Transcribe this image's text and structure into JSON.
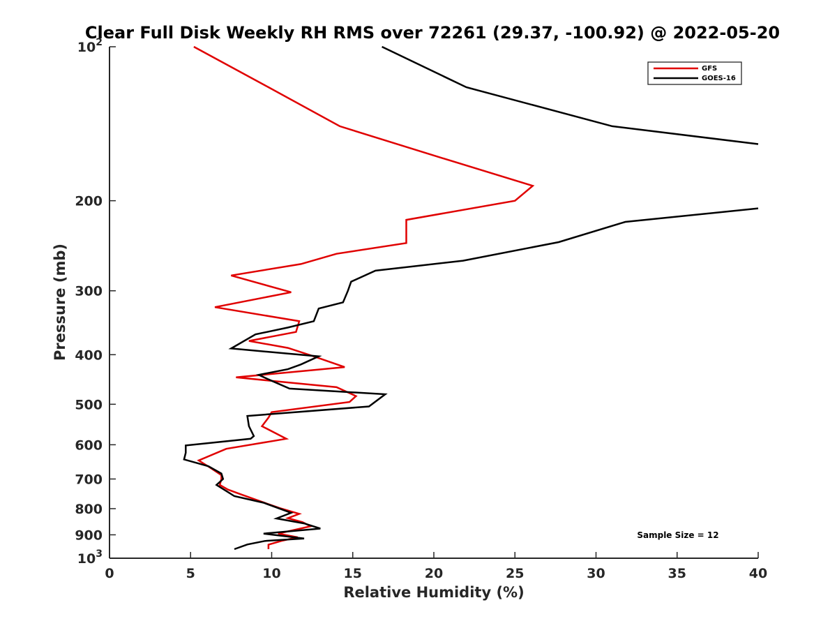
{
  "chart_data": {
    "type": "line",
    "title": "Clear Full Disk Weekly RH RMS over 72261 (29.37, -100.92) @ 2022-05-20",
    "xlabel": "Relative Humidity (%)",
    "ylabel": "Pressure (mb)",
    "xlim": [
      0,
      40
    ],
    "ylim": [
      100,
      1000
    ],
    "y_scale": "log",
    "y_reversed": true,
    "grid": false,
    "legend_position": "top-right",
    "annotation": "Sample Size = 12",
    "x_ticks": [
      {
        "value": 0,
        "label": "0"
      },
      {
        "value": 5,
        "label": "5"
      },
      {
        "value": 10,
        "label": "10"
      },
      {
        "value": 15,
        "label": "15"
      },
      {
        "value": 20,
        "label": "20"
      },
      {
        "value": 25,
        "label": "25"
      },
      {
        "value": 30,
        "label": "30"
      },
      {
        "value": 35,
        "label": "35"
      },
      {
        "value": 40,
        "label": "40"
      }
    ],
    "y_ticks": [
      {
        "value": 100,
        "base": "10",
        "exp": "2"
      },
      {
        "value": 200,
        "base": "200",
        "exp": ""
      },
      {
        "value": 300,
        "base": "300",
        "exp": ""
      },
      {
        "value": 400,
        "base": "400",
        "exp": ""
      },
      {
        "value": 500,
        "base": "500",
        "exp": ""
      },
      {
        "value": 600,
        "base": "600",
        "exp": ""
      },
      {
        "value": 700,
        "base": "700",
        "exp": ""
      },
      {
        "value": 800,
        "base": "800",
        "exp": ""
      },
      {
        "value": 900,
        "base": "900",
        "exp": ""
      },
      {
        "value": 1000,
        "base": "10",
        "exp": "3"
      }
    ],
    "series": [
      {
        "name": "GFS",
        "color": "#e00000",
        "points": [
          [
            5.2,
            100
          ],
          [
            9.8,
            120
          ],
          [
            14.2,
            143
          ],
          [
            20.5,
            165
          ],
          [
            26.1,
            187
          ],
          [
            25.0,
            200
          ],
          [
            18.3,
            218
          ],
          [
            18.3,
            242
          ],
          [
            14.0,
            254
          ],
          [
            11.8,
            266
          ],
          [
            7.5,
            280
          ],
          [
            11.2,
            302
          ],
          [
            6.5,
            323
          ],
          [
            11.7,
            344
          ],
          [
            11.5,
            361
          ],
          [
            8.6,
            376
          ],
          [
            11.0,
            388
          ],
          [
            12.5,
            402
          ],
          [
            14.5,
            423
          ],
          [
            7.8,
            443
          ],
          [
            14.0,
            463
          ],
          [
            15.2,
            482
          ],
          [
            14.8,
            495
          ],
          [
            10.0,
            518
          ],
          [
            9.8,
            531
          ],
          [
            9.4,
            552
          ],
          [
            10.9,
            584
          ],
          [
            7.2,
            611
          ],
          [
            5.5,
            644
          ],
          [
            6.2,
            665
          ],
          [
            6.9,
            688
          ],
          [
            6.9,
            700
          ],
          [
            6.8,
            719
          ],
          [
            7.3,
            734
          ],
          [
            8.1,
            750
          ],
          [
            9.2,
            772
          ],
          [
            10.5,
            798
          ],
          [
            11.7,
            819
          ],
          [
            11.0,
            835
          ],
          [
            11.9,
            850
          ],
          [
            12.4,
            866
          ],
          [
            11.7,
            876
          ],
          [
            10.4,
            895
          ],
          [
            11.6,
            910
          ],
          [
            10.6,
            925
          ],
          [
            9.8,
            941
          ],
          [
            9.8,
            960
          ]
        ]
      },
      {
        "name": "GOES-16",
        "color": "#000000",
        "points": [
          [
            16.8,
            100
          ],
          [
            22.0,
            120
          ],
          [
            31.0,
            143
          ],
          [
            40.0,
            155
          ]
        ],
        "points_lower": [
          [
            40.0,
            207
          ],
          [
            31.8,
            220
          ],
          [
            27.7,
            241
          ],
          [
            21.8,
            262
          ],
          [
            16.4,
            274
          ],
          [
            14.9,
            288
          ],
          [
            14.7,
            300
          ],
          [
            14.4,
            316
          ],
          [
            12.9,
            325
          ],
          [
            12.6,
            344
          ],
          [
            11.0,
            354
          ],
          [
            9.0,
            365
          ],
          [
            7.5,
            389
          ],
          [
            12.9,
            403
          ],
          [
            11.8,
            418
          ],
          [
            11.0,
            427
          ],
          [
            9.2,
            438
          ],
          [
            9.8,
            447
          ],
          [
            11.1,
            466
          ],
          [
            17.0,
            478
          ],
          [
            16.0,
            505
          ],
          [
            8.5,
            527
          ],
          [
            8.6,
            552
          ],
          [
            8.9,
            577
          ],
          [
            8.7,
            584
          ],
          [
            4.7,
            602
          ],
          [
            4.7,
            622
          ],
          [
            4.6,
            641
          ],
          [
            6.1,
            661
          ],
          [
            6.9,
            683
          ],
          [
            7.0,
            700
          ],
          [
            6.6,
            719
          ],
          [
            7.2,
            739
          ],
          [
            7.7,
            756
          ],
          [
            9.5,
            779
          ],
          [
            11.2,
            815
          ],
          [
            10.3,
            836
          ],
          [
            12.0,
            855
          ],
          [
            13.0,
            875
          ],
          [
            9.5,
            895
          ],
          [
            12.0,
            915
          ],
          [
            9.6,
            925
          ],
          [
            8.5,
            940
          ],
          [
            7.7,
            960
          ]
        ]
      }
    ]
  }
}
